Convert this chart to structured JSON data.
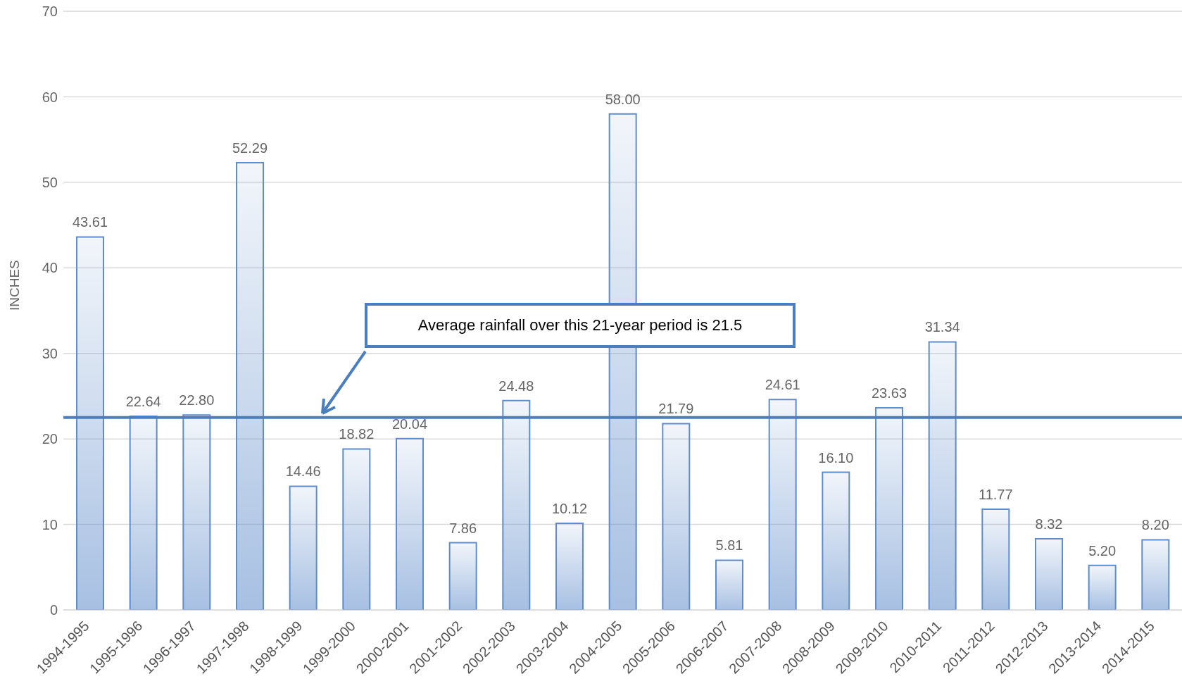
{
  "chart_data": {
    "type": "bar",
    "ylabel": "INCHES",
    "categories": [
      "1994-1995",
      "1995-1996",
      "1996-1997",
      "1997-1998",
      "1998-1999",
      "1999-2000",
      "2000-2001",
      "2001-2002",
      "2002-2003",
      "2003-2004",
      "2004-2005",
      "2005-2006",
      "2006-2007",
      "2007-2008",
      "2008-2009",
      "2009-2010",
      "2010-2011",
      "2011-2012",
      "2012-2013",
      "2013-2014",
      "2014-2015"
    ],
    "values": [
      43.61,
      22.64,
      22.8,
      52.29,
      14.46,
      18.82,
      20.04,
      7.86,
      24.48,
      10.12,
      58.0,
      21.79,
      5.81,
      24.61,
      16.1,
      23.63,
      31.34,
      11.77,
      8.32,
      5.2,
      8.2
    ],
    "value_labels": [
      "43.61",
      "22.64",
      "22.80",
      "52.29",
      "14.46",
      "18.82",
      "20.04",
      "7.86",
      "24.48",
      "10.12",
      "58.00",
      "21.79",
      "5.81",
      "24.61",
      "16.10",
      "23.63",
      "31.34",
      "11.77",
      "8.32",
      "5.20",
      "8.20"
    ],
    "color": "#5f8ccb",
    "ylim": [
      0,
      70
    ],
    "yticks": [
      0,
      10,
      20,
      30,
      40,
      50,
      60,
      70
    ],
    "grid": "y",
    "ref_lines": [
      {
        "axis": "y",
        "value": 22.5,
        "color": "#4a7ebf"
      }
    ],
    "annotations": [
      "Average rainfall over this 21-year period is 21.5"
    ]
  }
}
